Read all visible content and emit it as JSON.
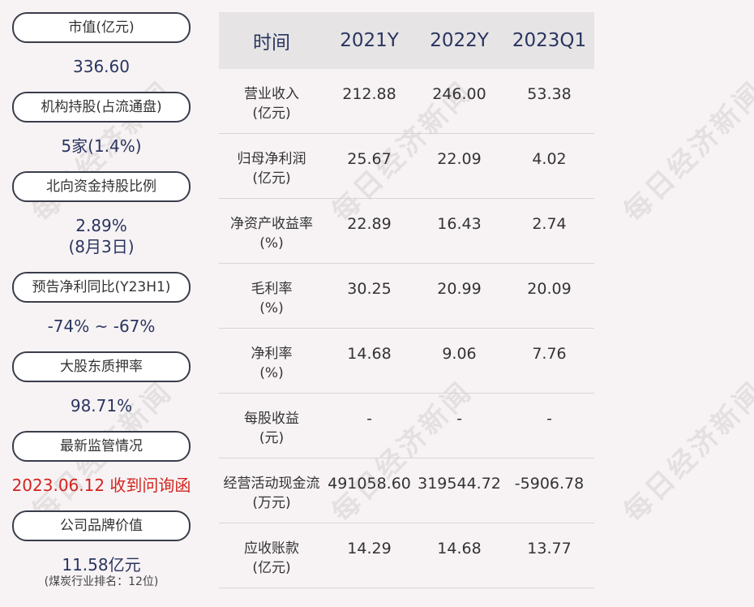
{
  "left": {
    "items": [
      {
        "label": "市值(亿元)",
        "value": "336.60"
      },
      {
        "label": "机构持股(占流通盘)",
        "value": "5家(1.4%)"
      },
      {
        "label": "北向资金持股比例",
        "value": "2.89%",
        "value2": "(8月3日)"
      },
      {
        "label": "预告净利同比(Y23H1)",
        "value": "-74% ~ -67%"
      },
      {
        "label": "大股东质押率",
        "value": "98.71%"
      },
      {
        "label": "最新监管情况",
        "value": "2023.06.12 收到问询函"
      },
      {
        "label": "公司品牌价值",
        "value": "11.58亿元",
        "value2": "(煤炭行业排名：12位)"
      }
    ]
  },
  "table": {
    "headers": [
      "时间",
      "2021Y",
      "2022Y",
      "2023Q1"
    ],
    "rows": [
      {
        "name": "营业收入",
        "unit": "(亿元)",
        "v": [
          "212.88",
          "246.00",
          "53.38"
        ]
      },
      {
        "name": "归母净利润",
        "unit": "(亿元)",
        "v": [
          "25.67",
          "22.09",
          "4.02"
        ]
      },
      {
        "name": "净资产收益率",
        "unit": "(%)",
        "v": [
          "22.89",
          "16.43",
          "2.74"
        ]
      },
      {
        "name": "毛利率",
        "unit": "(%)",
        "v": [
          "30.25",
          "20.99",
          "20.09"
        ]
      },
      {
        "name": "净利率",
        "unit": "(%)",
        "v": [
          "14.68",
          "9.06",
          "7.76"
        ]
      },
      {
        "name": "每股收益",
        "unit": "(元)",
        "v": [
          "-",
          "-",
          "-"
        ]
      },
      {
        "name": "经营活动现金流",
        "unit": "(万元)",
        "v": [
          "491058.60",
          "319544.72",
          "-5906.78"
        ]
      },
      {
        "name": "应收账款",
        "unit": "(亿元)",
        "v": [
          "14.29",
          "14.68",
          "13.77"
        ]
      }
    ]
  },
  "watermark": "每日经济新闻"
}
